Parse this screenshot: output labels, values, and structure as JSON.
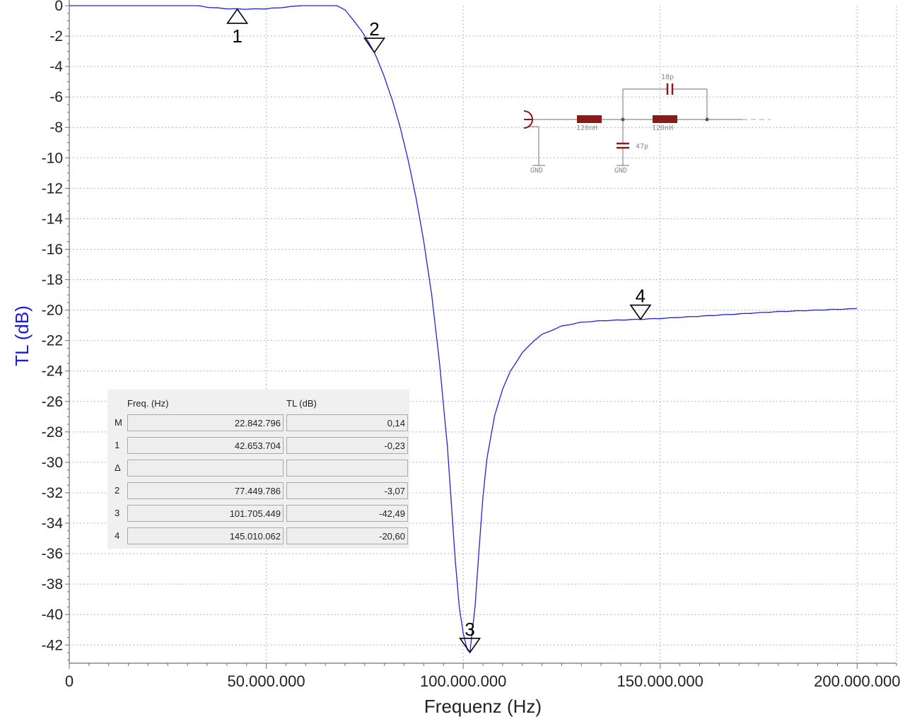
{
  "chart_data": {
    "type": "line",
    "xlabel": "Frequenz (Hz)",
    "ylabel": "TL (dB)",
    "xlim": [
      0,
      210000000
    ],
    "ylim": [
      -43,
      0
    ],
    "grid": true,
    "x_ticks": [
      0,
      50000000,
      100000000,
      150000000,
      200000000
    ],
    "x_tick_labels": [
      "0",
      "50.000.000",
      "100.000.000",
      "150.000.000",
      "200.000.000"
    ],
    "y_ticks": [
      0,
      -2,
      -4,
      -6,
      -8,
      -10,
      -12,
      -14,
      -16,
      -18,
      -20,
      -22,
      -24,
      -26,
      -28,
      -30,
      -32,
      -34,
      -36,
      -38,
      -40,
      -42
    ],
    "y_tick_labels": [
      "0",
      "-2",
      "-4",
      "-6",
      "-8",
      "-10",
      "-12",
      "-14",
      "-16",
      "-18",
      "-20",
      "-22",
      "-24",
      "-26",
      "-28",
      "-30",
      "-32",
      "-34",
      "-36",
      "-38",
      "-40",
      "-42"
    ],
    "colors": {
      "line": "#1f24d6",
      "ylabel": "#1a1adc",
      "grid": "#b4b4b4",
      "axis": "#707070"
    },
    "series": [
      {
        "x": [
          0,
          10000000,
          20000000,
          30000000,
          35000000,
          40000000,
          45000000,
          50000000,
          55000000,
          60000000,
          65000000,
          68000000,
          70000000,
          72000000,
          74000000,
          76000000,
          77449786,
          78000000,
          80000000,
          82000000,
          84000000,
          86000000,
          88000000,
          90000000,
          92000000,
          94000000,
          96000000,
          98000000,
          99000000,
          100000000,
          101000000,
          101705449,
          102000000,
          103000000,
          104000000,
          105000000,
          106000000,
          108000000,
          110000000,
          112000000,
          115000000,
          118000000,
          120000000,
          125000000,
          130000000,
          135000000,
          140000000,
          145010062,
          150000000,
          160000000,
          170000000,
          180000000,
          190000000,
          200000000
        ],
        "y": [
          0.1,
          0.1,
          0.12,
          0.1,
          -0.1,
          -0.2,
          -0.23,
          -0.2,
          -0.1,
          0.05,
          0.1,
          0.0,
          -0.3,
          -0.9,
          -1.6,
          -2.4,
          -3.07,
          -3.4,
          -4.7,
          -6.2,
          -8.0,
          -10.1,
          -12.6,
          -15.5,
          -19.0,
          -23.5,
          -29.0,
          -36.5,
          -39.5,
          -41.2,
          -42.3,
          -42.49,
          -41.8,
          -39.5,
          -35.8,
          -32.3,
          -29.8,
          -26.9,
          -25.2,
          -24.0,
          -22.8,
          -22.0,
          -21.6,
          -21.05,
          -20.8,
          -20.7,
          -20.65,
          -20.6,
          -20.55,
          -20.4,
          -20.25,
          -20.1,
          -20.0,
          -19.9
        ]
      }
    ],
    "markers": [
      {
        "label": "1",
        "x": 42653704,
        "y": -0.23,
        "direction": "up"
      },
      {
        "label": "2",
        "x": 77449786,
        "y": -3.07,
        "direction": "down"
      },
      {
        "label": "3",
        "x": 101705449,
        "y": -42.49,
        "direction": "down"
      },
      {
        "label": "4",
        "x": 145010062,
        "y": -20.6,
        "direction": "down"
      }
    ]
  },
  "marker_table": {
    "headers": {
      "freq": "Freq. (Hz)",
      "tl": "TL (dB)"
    },
    "rows": [
      {
        "label": "M",
        "freq": "22.842.796",
        "tl": "0,14"
      },
      {
        "label": "1",
        "freq": "42.653.704",
        "tl": "-0,23"
      },
      {
        "label": "Δ",
        "freq": "",
        "tl": ""
      },
      {
        "label": "2",
        "freq": "77.449.786",
        "tl": "-3,07"
      },
      {
        "label": "3",
        "freq": "101.705.449",
        "tl": "-42,49"
      },
      {
        "label": "4",
        "freq": "145.010.062",
        "tl": "-20,60"
      }
    ]
  },
  "schematic": {
    "inductor_1": "120nH",
    "inductor_2": "120nH",
    "capacitor_series": "18p",
    "capacitor_shunt": "47p",
    "gnd_1": "GND",
    "gnd_2": "GND",
    "colors": {
      "component": "#8b1a1a",
      "wire": "#8a8a8a"
    }
  }
}
